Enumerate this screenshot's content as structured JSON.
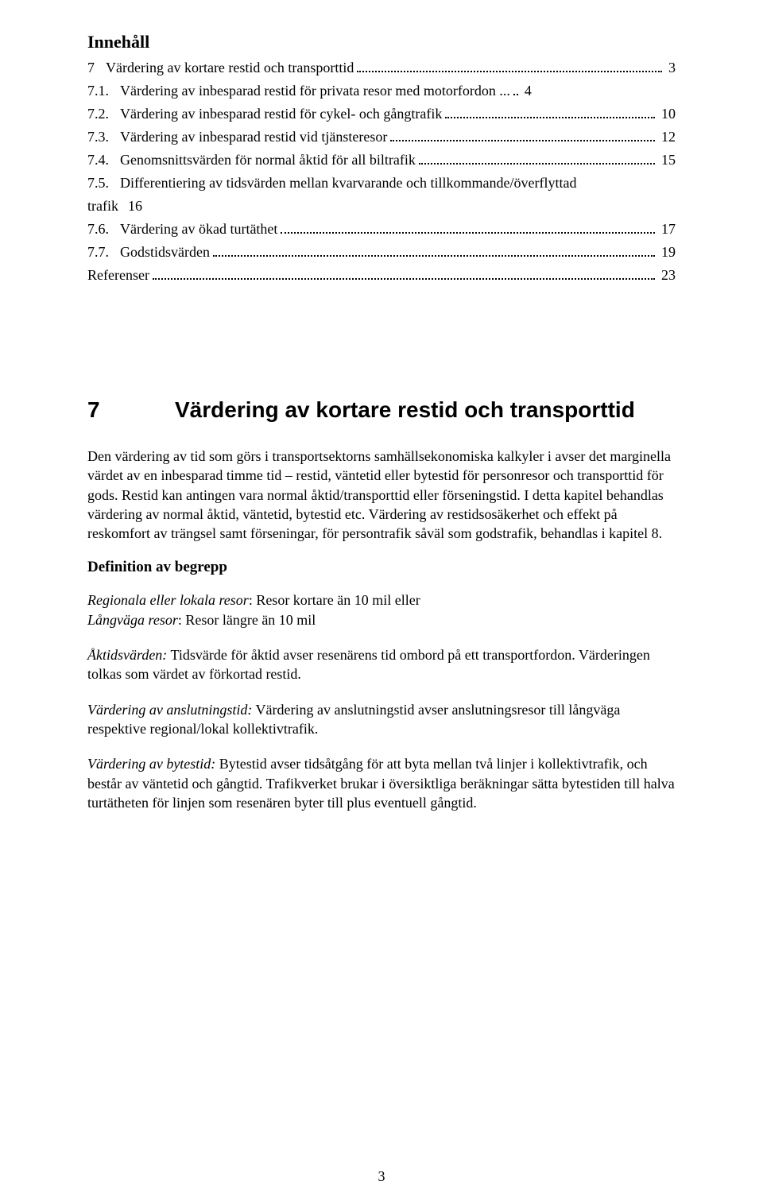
{
  "toc": {
    "heading": "Innehåll",
    "items": [
      {
        "num": "7",
        "title": "Värdering av kortare restid och transporttid",
        "page": "3"
      },
      {
        "num": "7.1.",
        "title": "Värdering av inbesparad restid för privata resor med motorfordon ...",
        "page": "4"
      },
      {
        "num": "7.2.",
        "title": "Värdering av inbesparad restid för cykel- och gångtrafik",
        "page": "10"
      },
      {
        "num": "7.3.",
        "title": "Värdering av inbesparad restid vid tjänsteresor",
        "page": "12"
      },
      {
        "num": "7.4.",
        "title": "Genomsnittsvärden för normal åktid för all biltrafik",
        "page": "15"
      },
      {
        "num": "7.5.",
        "title_line1": "Differentiering av tidsvärden mellan kvarvarande och tillkommande/överflyttad",
        "title_line2_prefix": "trafik",
        "page": "16"
      },
      {
        "num": "7.6.",
        "title": "Värdering av ökad turtäthet",
        "page": "17"
      },
      {
        "num": "7.7.",
        "title": "Godstidsvärden",
        "page": "19"
      },
      {
        "num": "",
        "title": "Referenser",
        "page": "23"
      }
    ]
  },
  "chapter": {
    "number": "7",
    "title": "Värdering av kortare restid och transporttid"
  },
  "paragraphs": {
    "intro": "Den värdering av tid som görs i transportsektorns samhällsekonomiska kalkyler i avser det marginella värdet av en inbesparad timme tid – restid, väntetid eller bytestid för personresor och transporttid för gods. Restid kan antingen vara normal åktid/transporttid eller förseningstid. I detta kapitel behandlas värdering av normal åktid, väntetid, bytestid etc. Värdering av restidsosäkerhet och effekt på reskomfort av trängsel samt förseningar, för persontrafik såväl som godstrafik, behandlas i kapitel 8."
  },
  "definitions_heading": "Definition av begrepp",
  "definitions": {
    "regional_term": "Regionala eller lokala resor",
    "regional_text": ": Resor kortare än 10 mil eller",
    "long_term": "Långväga resor",
    "long_text": ": Resor längre än 10 mil",
    "aktid_term": "Åktidsvärden:",
    "aktid_text": " Tidsvärde för åktid avser resenärens tid ombord på ett transportfordon. Värderingen tolkas som värdet av förkortad restid.",
    "anslut_term": "Värdering av anslutningstid:",
    "anslut_text": " Värdering av anslutningstid avser anslutningsresor till långväga respektive regional/lokal kollektivtrafik.",
    "bytes_term": "Värdering av bytestid:",
    "bytes_text": " Bytestid avser tidsåtgång för att byta mellan två linjer i kollektivtrafik, och består av väntetid och gångtid. Trafikverket brukar i översiktliga beräkningar sätta bytestiden till halva turtätheten för linjen som resenären byter till plus eventuell gångtid."
  },
  "page_number": "3"
}
